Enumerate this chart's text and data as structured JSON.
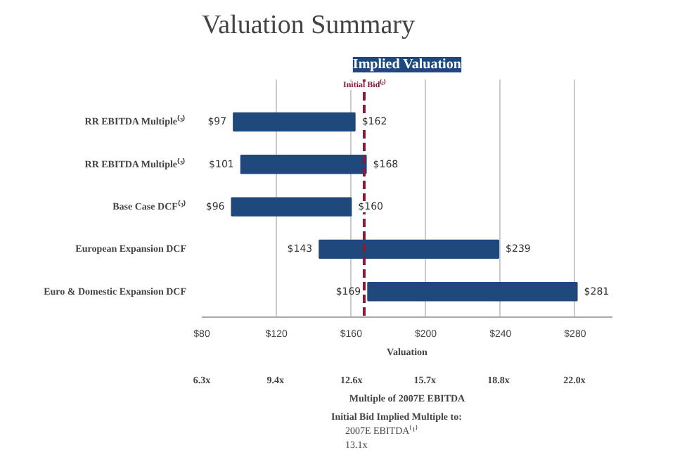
{
  "chart_data": {
    "type": "bar",
    "orientation": "horizontal",
    "title": "Valuation Summary",
    "subtitle": "Implied Valuation",
    "categories": [
      "RR EBITDA Multiple⁽³⁾",
      "RR EBITDA Multiple⁽³⁾",
      "Base Case DCF⁽³⁾",
      "European Expansion DCF",
      "Euro & Domestic Expansion DCF"
    ],
    "base": [
      97,
      101,
      96,
      143,
      169
    ],
    "values": [
      65,
      67,
      64,
      96,
      112
    ],
    "value_labels": [
      "$162",
      "$168",
      "$160",
      "$239",
      "$281"
    ],
    "color": "#1f497d",
    "xlim": [
      80,
      300
    ],
    "xticks": [
      {
        "value": 80,
        "label": "$80"
      },
      {
        "value": 120,
        "label": "$120"
      },
      {
        "value": 160,
        "label": "$160"
      },
      {
        "value": 200,
        "label": "$200"
      },
      {
        "value": 240,
        "label": "$240"
      },
      {
        "value": 280,
        "label": "$280"
      }
    ],
    "xlabel": "Valuation",
    "x2lim": [
      6.3,
      23.6
    ],
    "x2ticks": [
      {
        "value": 6.3,
        "label": "6.3x"
      },
      {
        "value": 9.4,
        "label": "9.4x"
      },
      {
        "value": 12.6,
        "label": "12.6x"
      },
      {
        "value": 15.7,
        "label": "15.7x"
      },
      {
        "value": 18.8,
        "label": "18.8x"
      },
      {
        "value": 22.0,
        "label": "22.0x"
      }
    ],
    "x2label": "Multiple of 2007E EBITDA",
    "grid": "x",
    "ref_lines": [
      {
        "axis": "x",
        "value": 167,
        "label": "Initial Bid⁽²⁾",
        "color": "#8b1a3a",
        "line_style": "dashed"
      }
    ],
    "annotations": [
      "$97",
      "$101",
      "$96",
      "$143",
      "$169",
      "Initial Bid Implied Multiple to:",
      "2007E EBITDA⁽¹⁾",
      "13.1x"
    ]
  }
}
